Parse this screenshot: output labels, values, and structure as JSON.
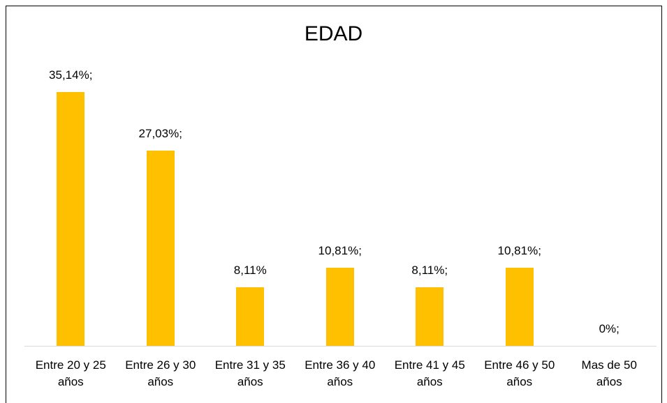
{
  "chart_data": {
    "type": "bar",
    "title": "EDAD",
    "categories": [
      "Entre 20 y 25 años",
      "Entre 26 y 30 años",
      "Entre 31 y 35 años",
      "Entre 36 y 40 años",
      "Entre 41 y 45 años",
      "Entre 46 y 50 años",
      "Mas de 50 años"
    ],
    "values": [
      35.14,
      27.03,
      8.11,
      10.81,
      8.11,
      10.81,
      0
    ],
    "value_labels": [
      "35,14%;",
      "27,03%;",
      "8,11%",
      "10,81%;",
      "8,11%;",
      "10,81%;",
      "0%;"
    ],
    "color": "#ffc000"
  }
}
